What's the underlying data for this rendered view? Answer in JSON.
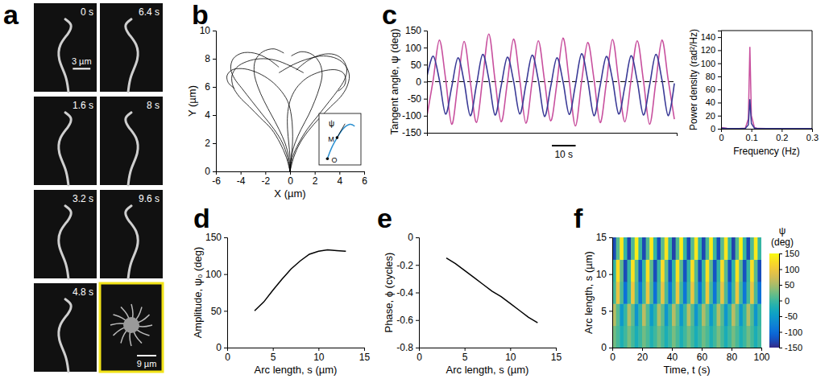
{
  "images": {
    "panel": "a",
    "frames": [
      "0 s",
      "6.4 s",
      "1.6 s",
      "8 s",
      "3.2 s",
      "9.6 s",
      "4.8 s"
    ],
    "scale_bar": "3 µm",
    "overview_scale_bar": "9 µm"
  },
  "chart_data": [
    {
      "type": "line",
      "panel": "b",
      "xlabel": "X (µm)",
      "ylabel": "Y (µm)",
      "xlim": [
        -6,
        6
      ],
      "ylim": [
        0,
        10
      ],
      "xticks": [
        -6,
        -4,
        -2,
        0,
        2,
        4,
        6
      ],
      "yticks": [
        0,
        2,
        4,
        6,
        8,
        10
      ],
      "annotations": [
        "ψ",
        "M",
        "O"
      ],
      "series": [
        {
          "color": "#000000",
          "x": [
            0,
            -0.2,
            -0.6,
            -1.3,
            -2.2,
            -3.1,
            -3.9,
            -4.5,
            -4.8,
            -4.6,
            -3.9,
            -2.9,
            -1.8,
            -0.9
          ],
          "values": [
            0,
            1,
            2,
            3,
            4,
            5,
            5.9,
            6.6,
            7.3,
            8,
            8.4,
            8.4,
            8,
            7.4
          ]
        },
        {
          "color": "#000000",
          "x": [
            0,
            -0.1,
            -0.4,
            -0.9,
            -1.5,
            -2.1,
            -2.6,
            -2.9,
            -2.8,
            -2.2,
            -1.3,
            -0.5
          ],
          "values": [
            0,
            1,
            2,
            3,
            4,
            5,
            6,
            7,
            7.9,
            8.5,
            8.7,
            8.4
          ]
        },
        {
          "color": "#000000",
          "x": [
            0,
            0,
            -0.1,
            -0.2,
            -0.2,
            0,
            0.5,
            1.3,
            2.2,
            3.1,
            3.8,
            4.3,
            4.5,
            4.4,
            3.9
          ],
          "values": [
            0,
            1,
            2,
            3,
            4,
            5,
            5.9,
            6.6,
            7,
            7.2,
            7.2,
            7,
            6.6,
            6.1,
            5.7
          ]
        },
        {
          "color": "#000000",
          "x": [
            0,
            0.2,
            0.7,
            1.4,
            2.3,
            3.2,
            3.9,
            4.4,
            4.6,
            4.3,
            3.6,
            2.6,
            1.5,
            0.5
          ],
          "values": [
            0,
            1,
            2,
            3,
            4,
            5,
            5.8,
            6.5,
            7.2,
            7.9,
            8.3,
            8.3,
            7.9,
            7.2
          ]
        },
        {
          "color": "#000000",
          "x": [
            0,
            0.1,
            0.4,
            0.9,
            1.5,
            2.0,
            2.4,
            2.6,
            2.4,
            1.8,
            0.9,
            0.1
          ],
          "values": [
            0,
            1,
            2,
            3,
            4,
            5,
            6,
            6.9,
            7.7,
            8.3,
            8.5,
            8.2
          ]
        },
        {
          "color": "#000000",
          "x": [
            0,
            0.1,
            0.2,
            0.2,
            0.1,
            -0.2,
            -0.9,
            -1.8,
            -2.9,
            -3.9,
            -4.7,
            -5.1,
            -5.0,
            -4.5
          ],
          "values": [
            0,
            1,
            2,
            3,
            4,
            5,
            5.9,
            6.6,
            7.1,
            7.3,
            7.2,
            6.8,
            6.3,
            5.9
          ]
        },
        {
          "color": "#000000",
          "x": [
            0,
            -0.3,
            -0.8,
            -1.5,
            -2.4,
            -3.3,
            -4.1,
            -4.6,
            -4.7,
            -4.3,
            -3.5,
            -2.4,
            -1.2,
            0,
            1.1
          ],
          "values": [
            0,
            1,
            2,
            3,
            3.8,
            4.6,
            5.3,
            6.0,
            6.8,
            7.4,
            7.8,
            8.0,
            7.9,
            7.5,
            7.0
          ]
        },
        {
          "color": "#000000",
          "x": [
            0,
            0.3,
            0.8,
            1.5,
            2.4,
            3.3,
            4.1,
            4.6,
            4.8,
            4.5,
            3.8,
            2.7,
            1.5,
            0.3,
            -0.9
          ],
          "values": [
            0,
            1,
            2,
            2.9,
            3.8,
            4.6,
            5.3,
            6.0,
            6.8,
            7.5,
            8.0,
            8.2,
            8.0,
            7.6,
            7.0
          ]
        }
      ]
    },
    {
      "type": "line",
      "panel": "c",
      "ylabel": "Tangent angle, ψ (deg)",
      "xlim": [
        0,
        105
      ],
      "ylim": [
        -150,
        150
      ],
      "yticks": [
        -150,
        -100,
        -50,
        0,
        50,
        100,
        150
      ],
      "tick_labels": "y",
      "zero_line": {
        "value": 0,
        "line_style": "dashed"
      },
      "scale_bar": {
        "value": 10,
        "label": "10 s"
      },
      "x": [
        0,
        2.6,
        5.2,
        7.8,
        10.4,
        13,
        15.6,
        18.2,
        20.8,
        23.4,
        26,
        28.6,
        31.2,
        33.8,
        36.4,
        39,
        41.6,
        44.2,
        46.8,
        49.4,
        52,
        54.6,
        57.2,
        59.8,
        62.4,
        65,
        67.6,
        70.2,
        72.8,
        75.4,
        78,
        80.6,
        83.2,
        85.8,
        88.4,
        91,
        93.6,
        96.2,
        98.8,
        101.4,
        104
      ],
      "series": [
        {
          "color": "#c8509e",
          "values": [
            -100,
            5,
            122,
            10,
            -125,
            -5,
            118,
            0,
            -120,
            8,
            140,
            5,
            -118,
            -2,
            125,
            6,
            -122,
            0,
            120,
            4,
            -115,
            -6,
            128,
            2,
            -130,
            0,
            115,
            8,
            -120,
            -4,
            124,
            0,
            -118,
            5,
            120,
            3,
            -125,
            -2,
            122,
            6,
            -110
          ]
        },
        {
          "color": "#3a3a96",
          "values": [
            15,
            75,
            5,
            -95,
            -15,
            70,
            0,
            -100,
            -10,
            80,
            8,
            -98,
            -12,
            72,
            2,
            -95,
            -8,
            78,
            5,
            -102,
            -15,
            70,
            0,
            -96,
            -10,
            82,
            4,
            -100,
            -12,
            74,
            6,
            -95,
            -14,
            76,
            2,
            -98,
            -10,
            80,
            5,
            -100,
            -5
          ]
        }
      ]
    },
    {
      "type": "line",
      "xlabel": "Frequency (Hz)",
      "ylabel": "Power density (rad²/Hz)",
      "xlim": [
        0,
        0.3
      ],
      "ylim": [
        0,
        150
      ],
      "xticks": [
        0,
        0.1,
        0.2,
        0.3
      ],
      "yticks": [
        0,
        20,
        40,
        60,
        80,
        100,
        120,
        140
      ],
      "x": [
        0,
        0.02,
        0.04,
        0.06,
        0.08,
        0.09,
        0.095,
        0.1,
        0.11,
        0.12,
        0.15,
        0.2,
        0.25,
        0.3
      ],
      "series": [
        {
          "color": "#c8509e",
          "values": [
            2,
            0.5,
            0.3,
            0.3,
            1,
            15,
            125,
            20,
            2,
            0.5,
            0.3,
            0.2,
            0.2,
            0.2
          ]
        },
        {
          "color": "#3a3a96",
          "values": [
            1,
            0.3,
            0.2,
            0.2,
            0.5,
            6,
            45,
            8,
            1,
            0.3,
            0.2,
            0.2,
            0.2,
            0.2
          ]
        }
      ]
    },
    {
      "type": "line",
      "panel": "d",
      "xlabel": "Arc length, s (µm)",
      "ylabel": "Amplitude, ψ₀ (deg)",
      "xlim": [
        0,
        15
      ],
      "ylim": [
        0,
        150
      ],
      "xticks": [
        0,
        5,
        10,
        15
      ],
      "yticks": [
        0,
        50,
        100,
        150
      ],
      "x": [
        3,
        4,
        5,
        6,
        7,
        8,
        9,
        10,
        11,
        12,
        13
      ],
      "series": [
        {
          "color": "#000000",
          "values": [
            50,
            62,
            78,
            93,
            107,
            118,
            127,
            131,
            133,
            132,
            131
          ]
        }
      ]
    },
    {
      "type": "line",
      "panel": "e",
      "xlabel": "Arc length, s (µm)",
      "ylabel": "Phase, ϕ (cycles)",
      "xlim": [
        0,
        15
      ],
      "ylim": [
        -0.8,
        0
      ],
      "xticks": [
        0,
        5,
        10,
        15
      ],
      "yticks": [
        -0.8,
        -0.6,
        -0.4,
        -0.2,
        0
      ],
      "x": [
        3,
        4,
        5,
        6,
        7,
        8,
        9,
        10,
        11,
        12,
        13
      ],
      "series": [
        {
          "color": "#000000",
          "values": [
            -0.15,
            -0.19,
            -0.24,
            -0.29,
            -0.34,
            -0.39,
            -0.43,
            -0.48,
            -0.53,
            -0.58,
            -0.62
          ]
        }
      ]
    },
    {
      "type": "heatmap",
      "panel": "f",
      "xlabel": "Time, t (s)",
      "ylabel": "Arc length, s (µm)",
      "xlim": [
        0,
        100
      ],
      "ylim": [
        0,
        15
      ],
      "xticks": [
        0,
        20,
        40,
        60,
        80,
        100
      ],
      "yticks": [
        0,
        5,
        10,
        15
      ],
      "colorbar": {
        "range": [
          -150,
          150
        ],
        "ticks": [
          -150,
          -100,
          -50,
          0,
          50,
          100,
          150
        ],
        "title": [
          "ψ",
          "(deg)"
        ]
      },
      "x_bins": [
        0,
        2.5,
        5,
        7.5,
        10,
        12.5,
        15,
        17.5,
        20,
        22.5,
        25,
        27.5,
        30,
        32.5,
        35,
        37.5,
        40,
        42.5,
        45,
        47.5,
        50,
        52.5,
        55,
        57.5,
        60,
        62.5,
        65,
        67.5,
        70,
        72.5,
        75,
        77.5,
        80,
        82.5,
        85,
        87.5,
        90,
        92.5,
        95,
        97.5,
        100
      ],
      "y_bins": [
        0,
        3,
        6,
        9,
        12,
        15
      ],
      "cells": [
        [
          25,
          5,
          -22,
          0,
          28,
          3,
          -25,
          -2,
          24,
          6,
          -20,
          0,
          26,
          4,
          -24,
          -1,
          27,
          5,
          -23,
          0,
          25,
          2,
          -26,
          -3,
          23,
          6,
          -21,
          1,
          28,
          4,
          -25,
          0,
          26,
          5,
          -22,
          -2,
          24,
          3,
          -24,
          0
        ],
        [
          58,
          12,
          -52,
          -6,
          55,
          15,
          -58,
          -4,
          60,
          10,
          -50,
          -8,
          54,
          16,
          -56,
          -5,
          57,
          13,
          -54,
          -3,
          59,
          11,
          -57,
          -7,
          53,
          14,
          -51,
          -4,
          56,
          12,
          -55,
          -6,
          58,
          15,
          -53,
          -5,
          55,
          10,
          -56,
          -4
        ],
        [
          2,
          92,
          8,
          -96,
          -3,
          98,
          5,
          -90,
          0,
          95,
          10,
          -98,
          4,
          90,
          6,
          -94,
          -2,
          97,
          3,
          -92,
          1,
          94,
          7,
          -97,
          -4,
          99,
          5,
          -93,
          3,
          91,
          8,
          -95,
          0,
          96,
          4,
          -91,
          2,
          93,
          6,
          -96
        ],
        [
          -8,
          122,
          18,
          -128,
          -4,
          128,
          12,
          -120,
          -6,
          125,
          16,
          -126,
          -2,
          120,
          14,
          -124,
          -7,
          127,
          15,
          -122,
          -5,
          123,
          11,
          -127,
          -3,
          126,
          17,
          -121,
          -6,
          121,
          13,
          -125,
          -8,
          128,
          16,
          -123,
          -4,
          124,
          12,
          -126
        ],
        [
          -128,
          12,
          132,
          -6,
          -133,
          8,
          138,
          -3,
          -130,
          10,
          134,
          -7,
          -126,
          14,
          130,
          -4,
          -135,
          9,
          137,
          -5,
          -129,
          11,
          133,
          -8,
          -131,
          7,
          136,
          -2,
          -127,
          13,
          131,
          -6,
          -134,
          10,
          139,
          -4,
          -130,
          8,
          135,
          -5
        ]
      ]
    }
  ]
}
